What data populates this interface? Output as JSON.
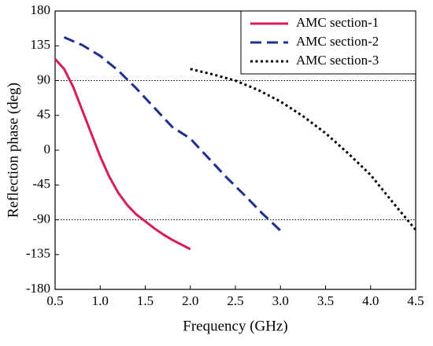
{
  "chart_data": {
    "type": "line",
    "x_label": "Frequency (GHz)",
    "y_label": "Reflection phase (deg)",
    "xlim": [
      0.5,
      4.5
    ],
    "xticks": [
      0.5,
      {
        "value": 1,
        "label": "1.0"
      },
      1.5,
      {
        "value": 2,
        "label": "2.0"
      },
      2.5,
      {
        "value": 3,
        "label": "3.0"
      },
      3.5,
      {
        "value": 4,
        "label": "4.0"
      },
      4.5
    ],
    "ylim": [
      -180,
      180
    ],
    "yticks": [
      180,
      135,
      90,
      45,
      0,
      -45,
      -90,
      -135,
      -180
    ],
    "reference_lines": [
      90,
      -90
    ],
    "legend": "upper right",
    "series": [
      {
        "name": "AMC section-1",
        "color": "#d81b5a",
        "dash": "solid",
        "x": [
          0.5,
          0.6,
          0.7,
          0.8,
          0.9,
          1.0,
          1.1,
          1.2,
          1.3,
          1.4,
          1.5,
          1.6,
          1.7,
          1.8,
          1.9,
          2.0
        ],
        "values": [
          118,
          105,
          82,
          52,
          22,
          -8,
          -34,
          -55,
          -71,
          -83,
          -92,
          -101,
          -109,
          -116,
          -122,
          -128
        ]
      },
      {
        "name": "AMC section-2",
        "color": "#1f2f8f",
        "dash": "dashed",
        "x": [
          0.6,
          0.8,
          1.0,
          1.2,
          1.4,
          1.6,
          1.8,
          2.0,
          2.2,
          2.4,
          2.6,
          2.8,
          3.0
        ],
        "values": [
          146,
          136,
          122,
          103,
          80,
          55,
          30,
          15,
          -10,
          -35,
          -58,
          -82,
          -104
        ]
      },
      {
        "name": "AMC section-3",
        "color": "#000000",
        "dash": "dotted",
        "x": [
          2.0,
          2.25,
          2.5,
          2.75,
          3.0,
          3.25,
          3.5,
          3.75,
          4.0,
          4.25,
          4.5
        ],
        "values": [
          105,
          98,
          90,
          78,
          63,
          44,
          22,
          -4,
          -32,
          -68,
          -103
        ]
      }
    ]
  }
}
